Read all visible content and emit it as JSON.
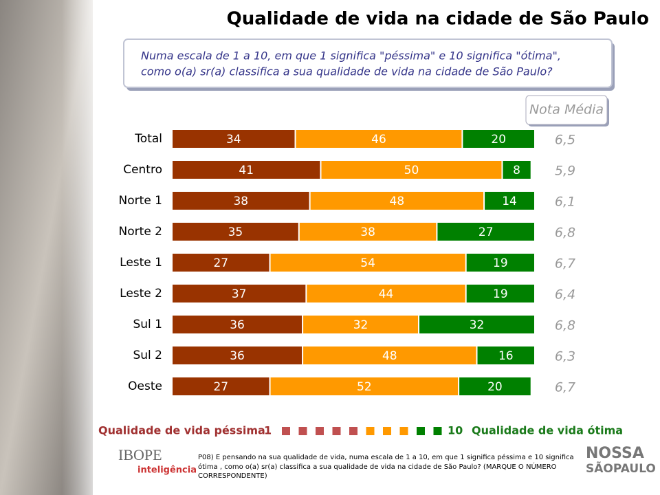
{
  "chart_data": {
    "type": "bar",
    "orientation": "horizontal",
    "stacked": true,
    "title": "Qualidade de vida na cidade de São Paulo",
    "subtitle": [
      "Numa escala de 1 a 10, em que 1 significa \"péssima\" e 10 significa \"ótima\",",
      "como o(a) sr(a) classifica a sua qualidade de vida na cidade de São Paulo?"
    ],
    "categories": [
      "Total",
      "Centro",
      "Norte 1",
      "Norte 2",
      "Leste 1",
      "Leste 2",
      "Sul 1",
      "Sul 2",
      "Oeste"
    ],
    "series": [
      {
        "color": "#993300",
        "values": [
          34,
          41,
          38,
          35,
          27,
          37,
          36,
          36,
          27
        ]
      },
      {
        "color": "#ff9900",
        "values": [
          46,
          50,
          48,
          38,
          54,
          44,
          32,
          48,
          52
        ]
      },
      {
        "color": "#008000",
        "values": [
          20,
          8,
          14,
          27,
          19,
          19,
          32,
          16,
          20
        ]
      }
    ],
    "nota_media": {
      "title": "Nota Média",
      "values": [
        6.5,
        5.9,
        6.1,
        6.8,
        6.7,
        6.4,
        6.8,
        6.3,
        6.7
      ],
      "value_labels": [
        "6,5",
        "5,9",
        "6,1",
        "6,8",
        "6,7",
        "6,4",
        "6,8",
        "6,3",
        "6,7"
      ]
    },
    "scale_legend": {
      "low_label": "Qualidade de vida péssima",
      "low_value": 1,
      "high_value": 10,
      "high_label": "Qualidade de vida ótima"
    },
    "footnote": [
      "P08) E pensando na sua qualidade de vida, numa escala de 1 a 10, em que 1 significa  péssima  e 10 significa",
      " ótima , como o(a) sr(a) classifica a sua qualidade de vida na cidade de São Paulo?  (MARQUE O NÚMERO",
      "CORRESPONDENTE)"
    ],
    "logos": [
      "IBOPE",
      "inteligência",
      "NOSSA",
      "SÃOPAULO"
    ]
  }
}
